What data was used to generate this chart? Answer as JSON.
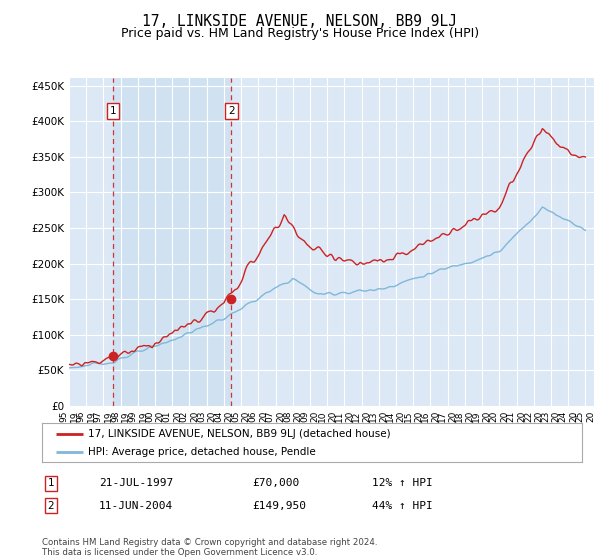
{
  "title": "17, LINKSIDE AVENUE, NELSON, BB9 9LJ",
  "subtitle": "Price paid vs. HM Land Registry's House Price Index (HPI)",
  "ylabel_ticks": [
    "£0",
    "£50K",
    "£100K",
    "£150K",
    "£200K",
    "£250K",
    "£300K",
    "£350K",
    "£400K",
    "£450K"
  ],
  "ytick_values": [
    0,
    50000,
    100000,
    150000,
    200000,
    250000,
    300000,
    350000,
    400000,
    450000
  ],
  "ylim": [
    0,
    460000
  ],
  "xlim_start": 1995.0,
  "xlim_end": 2025.5,
  "sale1_x": 1997.55,
  "sale1_y": 70000,
  "sale2_x": 2004.44,
  "sale2_y": 149950,
  "hpi_color": "#7fb8d8",
  "price_color": "#cc2222",
  "shade_color": "#dce8f5",
  "background_color": "#dce8f5",
  "grid_color": "#ffffff",
  "legend_entry1": "17, LINKSIDE AVENUE, NELSON, BB9 9LJ (detached house)",
  "legend_entry2": "HPI: Average price, detached house, Pendle",
  "note1_label": "1",
  "note1_date": "21-JUL-1997",
  "note1_price": "£70,000",
  "note1_hpi": "12% ↑ HPI",
  "note2_label": "2",
  "note2_date": "11-JUN-2004",
  "note2_price": "£149,950",
  "note2_hpi": "44% ↑ HPI",
  "footer": "Contains HM Land Registry data © Crown copyright and database right 2024.\nThis data is licensed under the Open Government Licence v3.0."
}
